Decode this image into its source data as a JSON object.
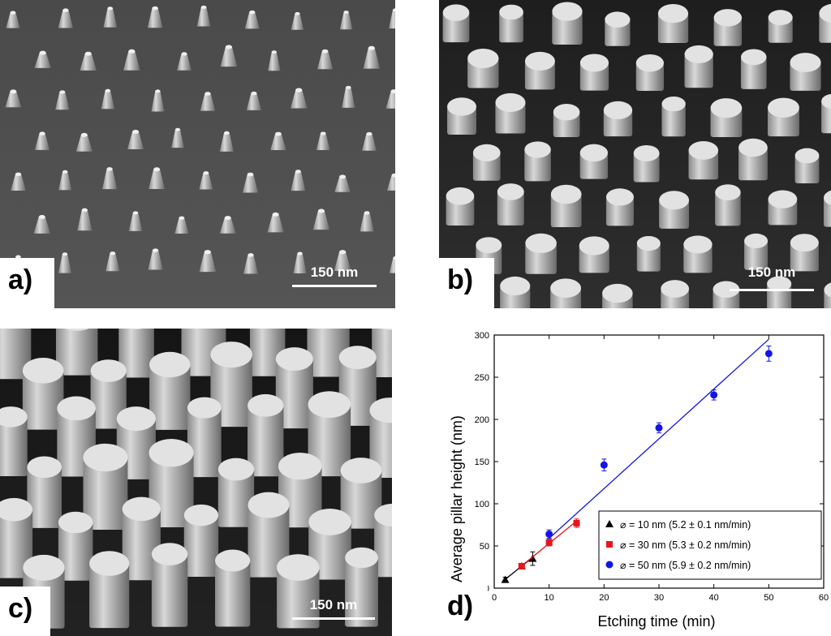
{
  "panels": [
    {
      "label": "a)",
      "scale_bar": "150 nm"
    },
    {
      "label": "b)",
      "scale_bar": "150 nm"
    },
    {
      "label": "c)",
      "scale_bar": "150 nm"
    },
    {
      "label": "d)"
    }
  ],
  "chart_data": {
    "type": "scatter",
    "xlabel": "Etching time (min)",
    "ylabel": "Average pillar height (nm)",
    "xlim": [
      0,
      60
    ],
    "ylim": [
      0,
      300
    ],
    "xticks": [
      0,
      10,
      20,
      30,
      40,
      50,
      60
    ],
    "yticks": [
      0,
      50,
      100,
      150,
      200,
      250,
      300
    ],
    "legend_position": "bottom-right",
    "series": [
      {
        "name": "⌀ = 10 nm (5.2 ± 0.1 nm/min)",
        "marker": "triangle",
        "color": "#000000",
        "x": [
          2,
          5,
          7
        ],
        "y": [
          10,
          26,
          35
        ],
        "err": [
          3,
          3,
          8
        ],
        "fit": {
          "x": [
            2,
            7
          ],
          "y": [
            10.4,
            36.4
          ]
        }
      },
      {
        "name": "⌀ = 30 nm (5.3 ± 0.2 nm/min)",
        "marker": "square",
        "color": "#e8141c",
        "x": [
          5,
          10,
          15
        ],
        "y": [
          26,
          54,
          77
        ],
        "err": [
          3,
          4,
          5
        ],
        "fit": {
          "x": [
            5,
            15
          ],
          "y": [
            26.5,
            79.5
          ]
        }
      },
      {
        "name": "⌀ = 50 nm (5.9 ± 0.2 nm/min)",
        "marker": "circle",
        "color": "#1414e6",
        "x": [
          10,
          20,
          30,
          40,
          50
        ],
        "y": [
          64,
          146,
          190,
          229,
          278
        ],
        "err": [
          5,
          7,
          6,
          6,
          9
        ],
        "fit": {
          "x": [
            10,
            50
          ],
          "y": [
            59,
            295
          ]
        }
      }
    ]
  }
}
